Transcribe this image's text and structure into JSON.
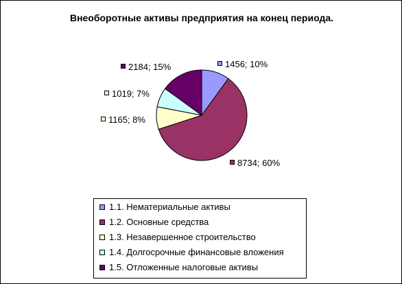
{
  "chart_data": {
    "type": "pie",
    "title": "Внеоборотные активы предприятия на конец периода.",
    "slices": [
      {
        "name": "1.1. Нематериальные активы",
        "value": 1456,
        "percent": 10,
        "label": "1456; 10%",
        "color": "#9999ff"
      },
      {
        "name": "1.2. Основные средства",
        "value": 8734,
        "percent": 60,
        "label": "8734; 60%",
        "color": "#993366"
      },
      {
        "name": "1.3. Незавершенное строительство",
        "value": 1165,
        "percent": 8,
        "label": "1165; 8%",
        "color": "#ffffcc"
      },
      {
        "name": "1.4. Долгосрочные финансовые вложения",
        "value": 1019,
        "percent": 7,
        "label": "1019; 7%",
        "color": "#ccffff"
      },
      {
        "name": "1.5. Отложенные налоговые активы",
        "value": 2184,
        "percent": 15,
        "label": "2184; 15%",
        "color": "#660066"
      }
    ],
    "legend_position": "bottom"
  }
}
